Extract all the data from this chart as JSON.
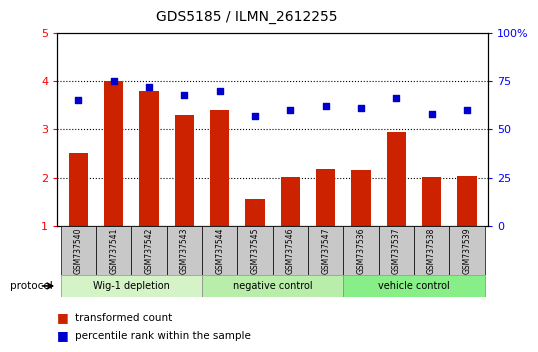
{
  "title": "GDS5185 / ILMN_2612255",
  "samples": [
    "GSM737540",
    "GSM737541",
    "GSM737542",
    "GSM737543",
    "GSM737544",
    "GSM737545",
    "GSM737546",
    "GSM737547",
    "GSM737536",
    "GSM737537",
    "GSM737538",
    "GSM737539"
  ],
  "transformed_count": [
    2.5,
    4.0,
    3.8,
    3.3,
    3.4,
    1.55,
    2.02,
    2.17,
    2.15,
    2.95,
    2.02,
    2.03
  ],
  "percentile_rank": [
    65,
    75,
    72,
    68,
    70,
    57,
    60,
    62,
    61,
    66,
    58,
    60
  ],
  "groups": [
    {
      "label": "Wig-1 depletion",
      "start": 0,
      "end": 3
    },
    {
      "label": "negative control",
      "start": 4,
      "end": 7
    },
    {
      "label": "vehicle control",
      "start": 8,
      "end": 11
    }
  ],
  "group_colors": [
    "#d4f4c8",
    "#b8eeaa",
    "#88ee88"
  ],
  "bar_color": "#cc2200",
  "dot_color": "#0000cc",
  "ylim_left": [
    1,
    5
  ],
  "ylim_right": [
    0,
    100
  ],
  "yticks_left": [
    1,
    2,
    3,
    4,
    5
  ],
  "yticks_right": [
    0,
    25,
    50,
    75,
    100
  ],
  "yticklabels_right": [
    "0",
    "25",
    "50",
    "75",
    "100%"
  ],
  "bar_width": 0.55,
  "background_color": "#ffffff",
  "protocol_label": "protocol",
  "legend_bar_label": "transformed count",
  "legend_dot_label": "percentile rank within the sample",
  "sample_box_color": "#c8c8c8"
}
